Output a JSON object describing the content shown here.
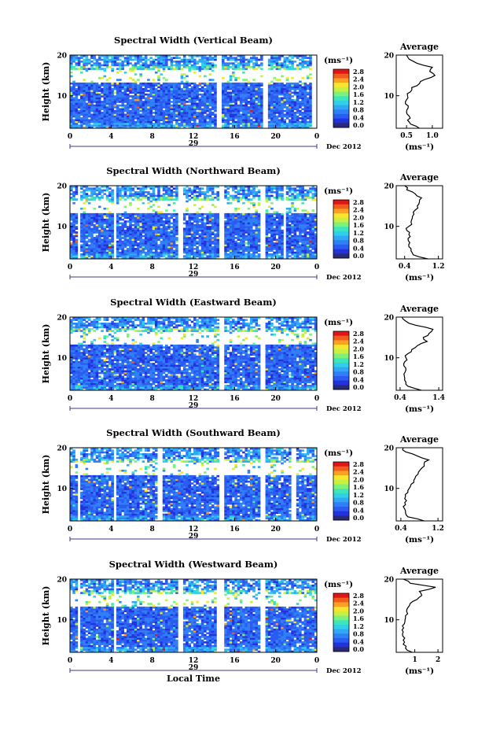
{
  "chart_data": [
    {
      "type": "heatmap",
      "title": "Spectral Width (Vertical Beam)",
      "ylabel": "Height (km)",
      "ylim": [
        2,
        20
      ],
      "yticks": [
        10,
        20
      ],
      "xticks": [
        "0",
        "4",
        "8",
        "12",
        "16",
        "20",
        "0"
      ],
      "xlim_hours": [
        0,
        24
      ],
      "date_label": "29",
      "date_suffix": "Dec 2012",
      "colorbar": {
        "unit": "(ms⁻¹)",
        "ticks": [
          "2.8",
          "2.4",
          "2.0",
          "1.6",
          "1.2",
          "0.8",
          "0.4",
          "0.0"
        ],
        "range": [
          0,
          2.8
        ]
      },
      "data_gaps_hours": [
        [
          14.3,
          14.8
        ],
        [
          18.7,
          19.3
        ],
        [
          23.4,
          24.0
        ]
      ],
      "average_profile": {
        "title": "Average",
        "xlabel": "(ms⁻¹)",
        "xticks": [
          "0.5",
          "1.0"
        ],
        "xlim": [
          0.3,
          1.2
        ],
        "yticks": [
          10,
          20
        ],
        "height_km": [
          2,
          3,
          4,
          5,
          6,
          7,
          8,
          9,
          10,
          11,
          12,
          13,
          14,
          15,
          16,
          17,
          18,
          19,
          20
        ],
        "width_ms": [
          0.75,
          0.58,
          0.52,
          0.55,
          0.5,
          0.53,
          0.48,
          0.5,
          0.52,
          0.58,
          0.6,
          0.75,
          0.85,
          1.05,
          0.95,
          1.0,
          0.7,
          0.55,
          0.5
        ]
      }
    },
    {
      "type": "heatmap",
      "title": "Spectral Width (Northward Beam)",
      "ylabel": "Height (km)",
      "ylim": [
        2,
        20
      ],
      "yticks": [
        10,
        20
      ],
      "xticks": [
        "0",
        "4",
        "8",
        "12",
        "16",
        "20",
        "0"
      ],
      "xlim_hours": [
        0,
        24
      ],
      "date_label": "29",
      "date_suffix": "Dec 2012",
      "colorbar": {
        "unit": "(ms⁻¹)",
        "ticks": [
          "2.8",
          "2.4",
          "2.0",
          "1.6",
          "1.2",
          "0.8",
          "0.4",
          "0.0"
        ],
        "range": [
          0,
          2.8
        ]
      },
      "data_gaps_hours": [
        [
          0.7,
          1.0
        ],
        [
          4.3,
          4.6
        ],
        [
          10.6,
          10.9
        ],
        [
          14.6,
          14.9
        ],
        [
          18.6,
          18.9
        ],
        [
          20.8,
          21.1
        ]
      ],
      "average_profile": {
        "title": "Average",
        "xlabel": "(ms⁻¹)",
        "xticks": [
          "0.4",
          "1.2"
        ],
        "xlim": [
          0.2,
          1.3
        ],
        "yticks": [
          10,
          20
        ],
        "height_km": [
          2,
          3,
          4,
          5,
          6,
          7,
          8,
          9,
          10,
          11,
          12,
          13,
          14,
          15,
          16,
          17,
          18,
          19,
          20
        ],
        "width_ms": [
          0.95,
          0.6,
          0.55,
          0.5,
          0.52,
          0.48,
          0.5,
          0.45,
          0.5,
          0.55,
          0.58,
          0.62,
          0.65,
          0.7,
          0.75,
          0.8,
          0.65,
          0.45,
          0.4
        ]
      }
    },
    {
      "type": "heatmap",
      "title": "Spectral Width (Eastward Beam)",
      "ylabel": "Height (km)",
      "ylim": [
        2,
        20
      ],
      "yticks": [
        10,
        20
      ],
      "xticks": [
        "0",
        "4",
        "8",
        "12",
        "16",
        "20",
        "0"
      ],
      "xlim_hours": [
        0,
        24
      ],
      "date_label": "29",
      "date_suffix": "Dec 2012",
      "colorbar": {
        "unit": "(ms⁻¹)",
        "ticks": [
          "2.8",
          "2.4",
          "2.0",
          "1.6",
          "1.2",
          "0.8",
          "0.4",
          "0.0"
        ],
        "range": [
          0,
          2.8
        ]
      },
      "data_gaps_hours": [
        [
          14.6,
          14.9
        ],
        [
          18.6,
          18.9
        ]
      ],
      "average_profile": {
        "title": "Average",
        "xlabel": "(ms⁻¹)",
        "xticks": [
          "0.4",
          "1.4"
        ],
        "xlim": [
          0.3,
          1.5
        ],
        "yticks": [
          10,
          20
        ],
        "height_km": [
          2,
          3,
          4,
          5,
          6,
          7,
          8,
          9,
          10,
          11,
          12,
          13,
          14,
          15,
          16,
          17,
          18,
          19,
          20
        ],
        "width_ms": [
          0.95,
          0.6,
          0.55,
          0.52,
          0.5,
          0.55,
          0.5,
          0.52,
          0.55,
          0.6,
          0.7,
          0.85,
          1.1,
          1.0,
          1.15,
          1.25,
          0.8,
          0.55,
          0.45
        ]
      }
    },
    {
      "type": "heatmap",
      "title": "Spectral Width (Southward Beam)",
      "ylabel": "Height (km)",
      "ylim": [
        2,
        20
      ],
      "yticks": [
        10,
        20
      ],
      "xticks": [
        "0",
        "4",
        "8",
        "12",
        "16",
        "20",
        "0"
      ],
      "xlim_hours": [
        0,
        24
      ],
      "date_label": "29",
      "date_suffix": "Dec 2012",
      "colorbar": {
        "unit": "(ms⁻¹)",
        "ticks": [
          "2.8",
          "2.4",
          "2.0",
          "1.6",
          "1.2",
          "0.8",
          "0.4",
          "0.0"
        ],
        "range": [
          0,
          2.8
        ]
      },
      "data_gaps_hours": [
        [
          0.7,
          1.0
        ],
        [
          4.3,
          4.6
        ],
        [
          8.6,
          8.9
        ],
        [
          14.6,
          14.9
        ],
        [
          18.6,
          18.9
        ],
        [
          21.6,
          21.9
        ]
      ],
      "average_profile": {
        "title": "Average",
        "xlabel": "(ms⁻¹)",
        "xticks": [
          "0.4",
          "1.2"
        ],
        "xlim": [
          0.3,
          1.3
        ],
        "yticks": [
          10,
          20
        ],
        "height_km": [
          2,
          3,
          4,
          5,
          6,
          7,
          8,
          9,
          10,
          11,
          12,
          13,
          14,
          15,
          16,
          17,
          18,
          19,
          20
        ],
        "width_ms": [
          0.9,
          0.55,
          0.5,
          0.48,
          0.5,
          0.52,
          0.5,
          0.55,
          0.58,
          0.62,
          0.68,
          0.72,
          0.78,
          0.85,
          0.9,
          1.0,
          0.75,
          0.5,
          0.45
        ]
      }
    },
    {
      "type": "heatmap",
      "title": "Spectral Width (Westward Beam)",
      "ylabel": "Height (km)",
      "ylim": [
        2,
        20
      ],
      "yticks": [
        10,
        20
      ],
      "xticks": [
        "0",
        "4",
        "8",
        "12",
        "16",
        "20",
        "0"
      ],
      "xlim_hours": [
        0,
        24
      ],
      "date_label": "29",
      "date_suffix": "Dec 2012",
      "xlabel": "Local Time",
      "colorbar": {
        "unit": "(ms⁻¹)",
        "ticks": [
          "2.8",
          "2.4",
          "2.0",
          "1.6",
          "1.2",
          "0.8",
          "0.4",
          "0.0"
        ],
        "range": [
          0,
          2.8
        ]
      },
      "data_gaps_hours": [
        [
          0.7,
          1.0
        ],
        [
          4.3,
          4.6
        ],
        [
          10.6,
          10.9
        ],
        [
          14.3,
          14.9
        ],
        [
          18.6,
          18.9
        ]
      ],
      "average_profile": {
        "title": "Average",
        "xlabel": "(ms⁻¹)",
        "xticks": [
          "1",
          "2"
        ],
        "xlim": [
          0.2,
          2.2
        ],
        "yticks": [
          10,
          20
        ],
        "height_km": [
          2,
          3,
          4,
          5,
          6,
          7,
          8,
          9,
          10,
          11,
          12,
          13,
          14,
          15,
          16,
          17,
          18,
          19,
          20
        ],
        "width_ms": [
          0.9,
          0.6,
          0.5,
          0.5,
          0.48,
          0.5,
          0.52,
          0.55,
          0.58,
          0.6,
          0.65,
          0.7,
          0.8,
          1.1,
          1.3,
          1.2,
          1.9,
          0.8,
          0.5
        ]
      }
    }
  ],
  "colors": {
    "colormap": [
      "#2a2a7a",
      "#2233dd",
      "#2b5bf0",
      "#2f7ff7",
      "#30a8f5",
      "#2fd0e8",
      "#3fe6b8",
      "#7ff07a",
      "#c9f040",
      "#f6e62e",
      "#fba020",
      "#f25c1c",
      "#e01616"
    ],
    "background": "#ffffff",
    "axis": "#000000"
  }
}
